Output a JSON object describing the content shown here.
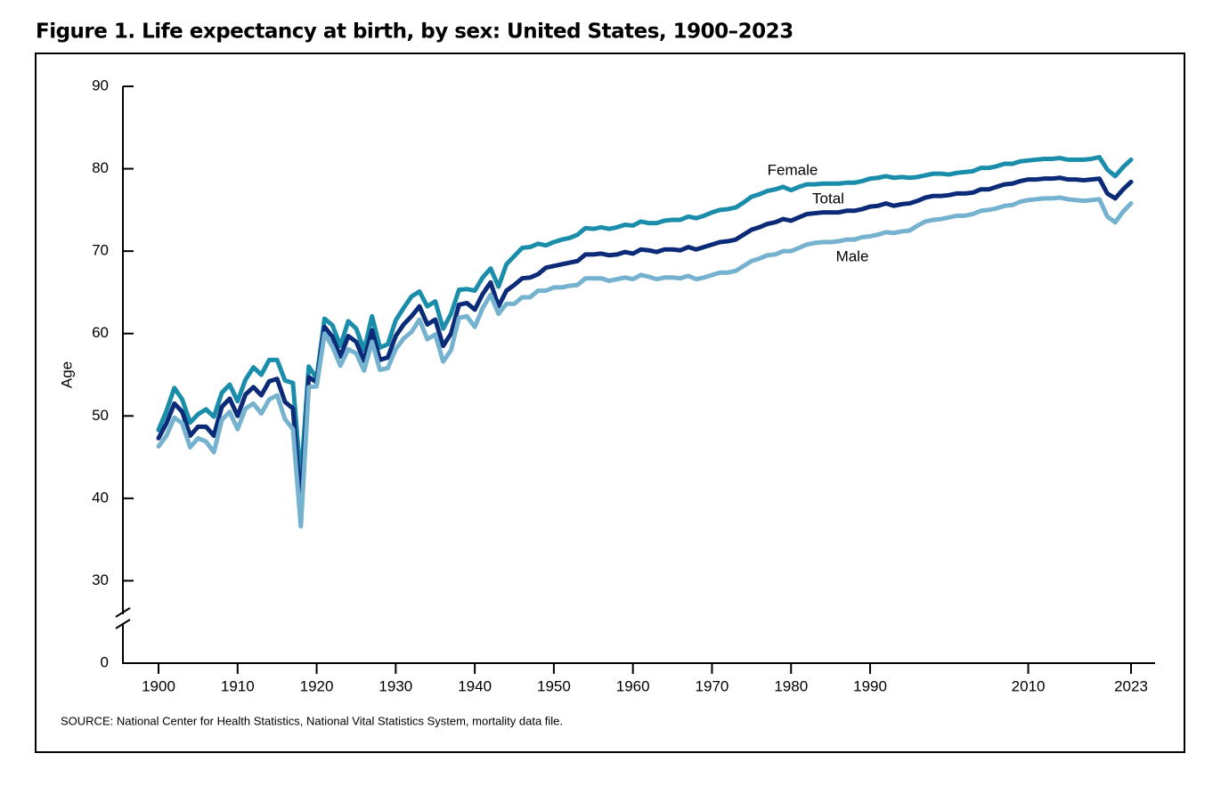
{
  "chart_data": {
    "type": "line",
    "title": "Figure 1. Life expectancy at birth, by sex: United States, 1900–2023",
    "y_label": "Age",
    "source": "SOURCE: National Center for Health Statistics, National Vital Statistics System, mortality data file.",
    "x": [
      1900,
      1901,
      1902,
      1903,
      1904,
      1905,
      1906,
      1907,
      1908,
      1909,
      1910,
      1911,
      1912,
      1913,
      1914,
      1915,
      1916,
      1917,
      1918,
      1919,
      1920,
      1921,
      1922,
      1923,
      1924,
      1925,
      1926,
      1927,
      1928,
      1929,
      1930,
      1931,
      1932,
      1933,
      1934,
      1935,
      1936,
      1937,
      1938,
      1939,
      1940,
      1941,
      1942,
      1943,
      1944,
      1945,
      1946,
      1947,
      1948,
      1949,
      1950,
      1951,
      1952,
      1953,
      1954,
      1955,
      1956,
      1957,
      1958,
      1959,
      1960,
      1961,
      1962,
      1963,
      1964,
      1965,
      1966,
      1967,
      1968,
      1969,
      1970,
      1971,
      1972,
      1973,
      1974,
      1975,
      1976,
      1977,
      1978,
      1979,
      1980,
      1981,
      1982,
      1983,
      1984,
      1985,
      1986,
      1987,
      1988,
      1989,
      1990,
      1991,
      1992,
      1993,
      1994,
      1995,
      1996,
      1997,
      1998,
      1999,
      2000,
      2001,
      2002,
      2003,
      2004,
      2005,
      2006,
      2007,
      2008,
      2009,
      2010,
      2011,
      2012,
      2013,
      2014,
      2015,
      2016,
      2017,
      2018,
      2019,
      2020,
      2021,
      2022,
      2023
    ],
    "series": [
      {
        "name": "Female",
        "color": "#1a8dab",
        "values": [
          48.3,
          50.6,
          53.4,
          52.0,
          49.2,
          50.2,
          50.8,
          49.9,
          52.8,
          53.8,
          51.8,
          54.4,
          55.9,
          55.0,
          56.8,
          56.8,
          54.3,
          54.0,
          42.2,
          56.0,
          54.6,
          61.8,
          61.0,
          58.5,
          61.5,
          60.6,
          58.0,
          62.1,
          58.3,
          58.7,
          61.6,
          63.1,
          64.5,
          65.1,
          63.3,
          63.9,
          60.6,
          62.4,
          65.3,
          65.4,
          65.2,
          66.8,
          67.9,
          65.7,
          68.4,
          69.4,
          70.4,
          70.5,
          70.9,
          70.7,
          71.1,
          71.4,
          71.6,
          72.0,
          72.8,
          72.7,
          72.9,
          72.7,
          72.9,
          73.2,
          73.1,
          73.6,
          73.4,
          73.4,
          73.7,
          73.8,
          73.8,
          74.2,
          74.0,
          74.3,
          74.7,
          75.0,
          75.1,
          75.3,
          75.9,
          76.6,
          76.9,
          77.3,
          77.5,
          77.8,
          77.4,
          77.8,
          78.1,
          78.1,
          78.2,
          78.2,
          78.2,
          78.3,
          78.3,
          78.5,
          78.8,
          78.9,
          79.1,
          78.9,
          79.0,
          78.9,
          79.0,
          79.2,
          79.4,
          79.4,
          79.3,
          79.5,
          79.6,
          79.7,
          80.1,
          80.1,
          80.3,
          80.6,
          80.6,
          80.9,
          81.0,
          81.1,
          81.2,
          81.2,
          81.3,
          81.1,
          81.1,
          81.1,
          81.2,
          81.4,
          79.9,
          79.1,
          80.2,
          81.1
        ]
      },
      {
        "name": "Total",
        "color": "#0b2b78",
        "values": [
          47.3,
          49.1,
          51.5,
          50.5,
          47.6,
          48.7,
          48.7,
          47.6,
          51.1,
          52.1,
          50.0,
          52.6,
          53.5,
          52.5,
          54.2,
          54.5,
          51.7,
          50.9,
          39.1,
          54.7,
          54.1,
          60.8,
          59.6,
          57.2,
          59.7,
          59.0,
          56.7,
          60.4,
          56.8,
          57.1,
          59.7,
          61.1,
          62.1,
          63.3,
          61.1,
          61.7,
          58.5,
          60.0,
          63.5,
          63.7,
          62.9,
          64.8,
          66.2,
          63.3,
          65.2,
          65.9,
          66.7,
          66.8,
          67.2,
          68.0,
          68.2,
          68.4,
          68.6,
          68.8,
          69.6,
          69.6,
          69.7,
          69.5,
          69.6,
          69.9,
          69.7,
          70.2,
          70.1,
          69.9,
          70.2,
          70.2,
          70.1,
          70.5,
          70.2,
          70.5,
          70.8,
          71.1,
          71.2,
          71.4,
          72.0,
          72.6,
          72.9,
          73.3,
          73.5,
          73.9,
          73.7,
          74.1,
          74.5,
          74.6,
          74.7,
          74.7,
          74.7,
          74.9,
          74.9,
          75.1,
          75.4,
          75.5,
          75.8,
          75.5,
          75.7,
          75.8,
          76.1,
          76.5,
          76.7,
          76.7,
          76.8,
          77.0,
          77.0,
          77.1,
          77.5,
          77.5,
          77.8,
          78.1,
          78.2,
          78.5,
          78.7,
          78.7,
          78.8,
          78.8,
          78.9,
          78.7,
          78.7,
          78.6,
          78.7,
          78.8,
          77.0,
          76.4,
          77.5,
          78.4
        ]
      },
      {
        "name": "Male",
        "color": "#74b2cf",
        "values": [
          46.3,
          47.6,
          49.8,
          49.1,
          46.2,
          47.3,
          46.9,
          45.6,
          49.5,
          50.5,
          48.4,
          50.9,
          51.5,
          50.3,
          52.0,
          52.5,
          49.6,
          48.4,
          36.6,
          53.5,
          53.6,
          60.0,
          58.4,
          56.1,
          58.1,
          57.6,
          55.5,
          59.0,
          55.6,
          55.8,
          58.1,
          59.4,
          60.2,
          61.7,
          59.3,
          59.9,
          56.6,
          58.0,
          61.9,
          62.1,
          60.8,
          63.1,
          64.7,
          62.4,
          63.6,
          63.6,
          64.4,
          64.4,
          65.2,
          65.2,
          65.6,
          65.6,
          65.8,
          65.9,
          66.7,
          66.7,
          66.7,
          66.4,
          66.6,
          66.8,
          66.6,
          67.1,
          66.9,
          66.6,
          66.8,
          66.8,
          66.7,
          67.0,
          66.6,
          66.8,
          67.1,
          67.4,
          67.4,
          67.6,
          68.2,
          68.8,
          69.1,
          69.5,
          69.6,
          70.0,
          70.0,
          70.4,
          70.8,
          71.0,
          71.1,
          71.1,
          71.2,
          71.4,
          71.4,
          71.7,
          71.8,
          72.0,
          72.3,
          72.2,
          72.4,
          72.5,
          73.1,
          73.6,
          73.8,
          73.9,
          74.1,
          74.3,
          74.3,
          74.5,
          74.9,
          75.0,
          75.2,
          75.5,
          75.6,
          76.0,
          76.2,
          76.3,
          76.4,
          76.4,
          76.5,
          76.3,
          76.2,
          76.1,
          76.2,
          76.3,
          74.2,
          73.5,
          74.8,
          75.8
        ]
      }
    ],
    "xlim": [
      1900,
      2023
    ],
    "xticks": [
      1900,
      1910,
      1920,
      1930,
      1940,
      1950,
      1960,
      1970,
      1980,
      1990,
      2010,
      2023
    ],
    "ylim": [
      0,
      90
    ],
    "yticks": [
      0,
      30,
      40,
      50,
      60,
      70,
      80,
      90
    ],
    "axis_break": [
      0,
      30
    ],
    "grid": false
  }
}
